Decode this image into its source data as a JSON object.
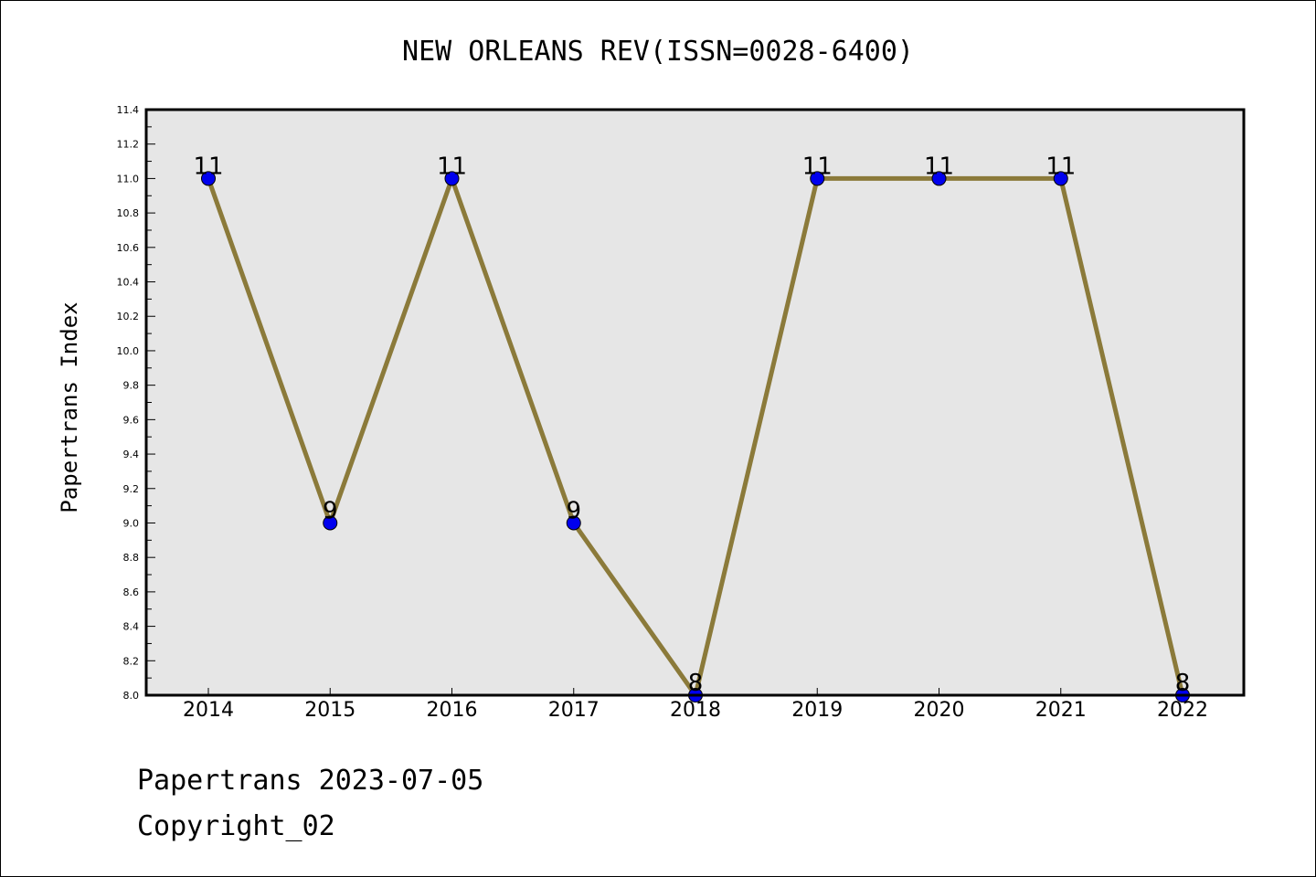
{
  "chart_data": {
    "type": "line",
    "title": "NEW ORLEANS REV(ISSN=0028-6400)",
    "xlabel": "",
    "ylabel": "Papertrans Index",
    "categories": [
      "2014",
      "2015",
      "2016",
      "2017",
      "2018",
      "2019",
      "2020",
      "2021",
      "2022"
    ],
    "series": [
      {
        "values": [
          11,
          9,
          11,
          9,
          8,
          11,
          11,
          11,
          8
        ]
      }
    ],
    "ylim": [
      8.0,
      11.4
    ],
    "yticks": [
      "8.0",
      "8.2",
      "8.4",
      "8.6",
      "8.8",
      "9.0",
      "9.2",
      "9.4",
      "9.6",
      "9.8",
      "10.0",
      "10.2",
      "10.4",
      "10.6",
      "10.8",
      "11.0",
      "11.2",
      "11.4"
    ],
    "grid": false,
    "colors": {
      "line": "#8b7a3a",
      "marker": "#0000ee",
      "plot_background": "#e6e6e6"
    }
  },
  "footer": {
    "line1": "Papertrans 2023-07-05",
    "line2": "Copyright_02"
  }
}
